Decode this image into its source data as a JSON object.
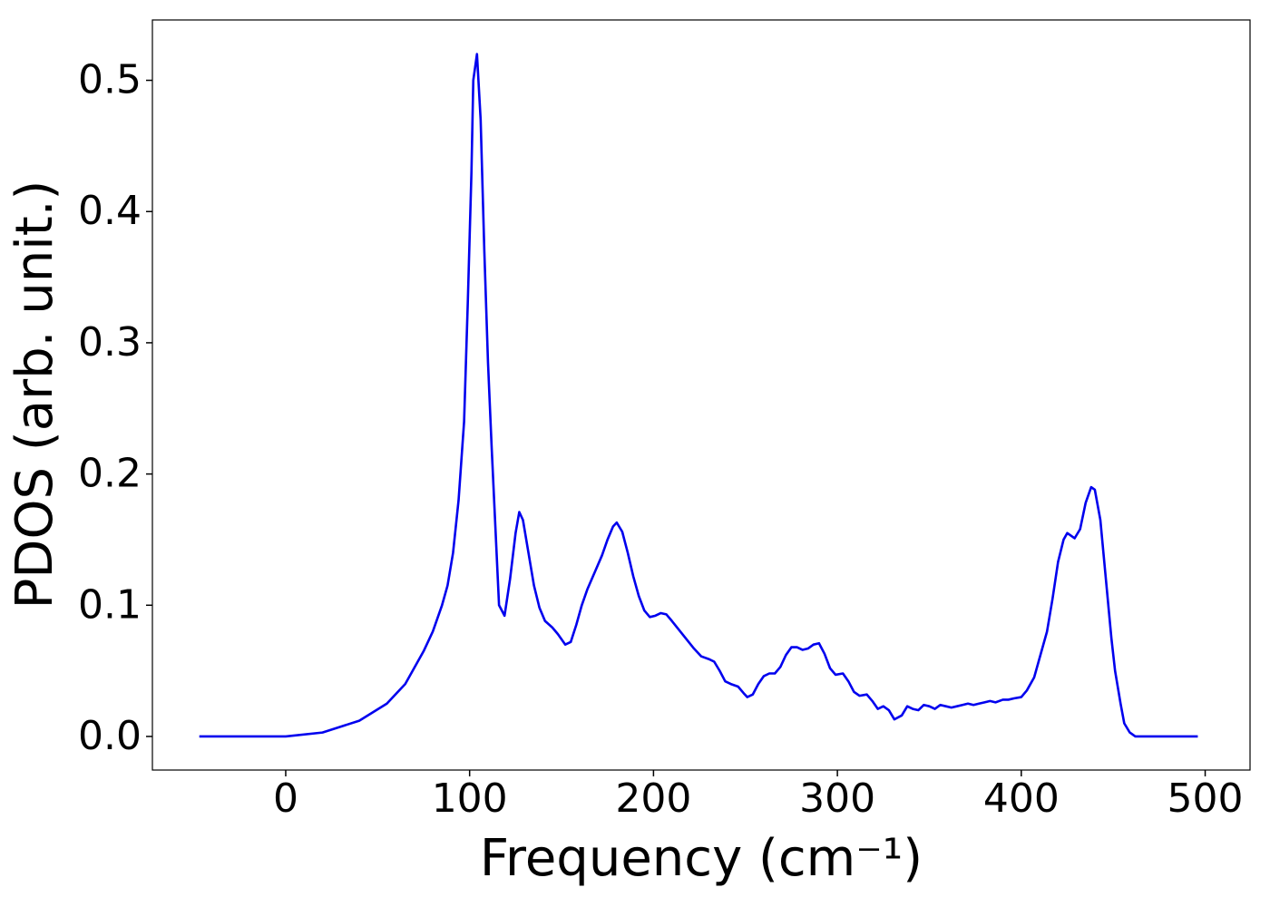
{
  "chart_data": {
    "type": "line",
    "x_label": "Frequency (cm⁻¹)",
    "y_label": "PDOS (arb. unit.)",
    "xlim": [
      -72.5,
      524.4
    ],
    "ylim": [
      -0.0256,
      0.546
    ],
    "xticks": [
      0,
      100,
      200,
      300,
      400,
      500
    ],
    "yticks": [
      {
        "value": 0,
        "label": "0.0"
      },
      0.1,
      0.2,
      0.3,
      0.4,
      0.5
    ],
    "grid": false,
    "series": [
      {
        "color": "#0000ee",
        "x": [
          -47,
          0,
          20,
          40,
          55,
          65,
          75,
          80,
          85,
          88,
          91,
          94,
          97,
          99,
          101,
          102,
          104,
          106,
          108,
          110,
          112,
          114,
          116,
          119,
          122,
          125,
          127,
          129,
          132,
          135,
          138,
          141,
          145,
          148,
          152,
          155,
          158,
          161,
          164,
          168,
          172,
          175,
          178,
          180,
          183,
          186,
          189,
          192,
          195,
          198,
          201,
          204,
          207,
          210,
          214,
          218,
          222,
          226,
          230,
          233,
          236,
          239,
          242,
          246,
          249,
          251,
          254,
          257,
          260,
          263,
          266,
          269,
          272,
          275,
          278,
          281,
          284,
          287,
          290,
          293,
          296,
          299,
          303,
          306,
          309,
          312,
          316,
          319,
          322,
          325,
          328,
          331,
          335,
          338,
          341,
          344,
          347,
          350,
          353,
          356,
          359,
          362,
          365,
          368,
          371,
          374,
          377,
          380,
          383,
          386,
          390,
          393,
          396,
          400,
          403,
          407,
          410,
          414,
          417,
          420,
          423,
          425,
          429,
          432,
          435,
          438,
          440,
          443,
          446,
          449,
          451,
          454,
          456,
          459,
          462,
          496
        ],
        "values": [
          0,
          0,
          0.003,
          0.012,
          0.025,
          0.04,
          0.065,
          0.08,
          0.1,
          0.115,
          0.14,
          0.18,
          0.24,
          0.33,
          0.43,
          0.5,
          0.52,
          0.47,
          0.37,
          0.285,
          0.22,
          0.16,
          0.1,
          0.092,
          0.12,
          0.155,
          0.171,
          0.165,
          0.14,
          0.115,
          0.098,
          0.088,
          0.083,
          0.078,
          0.07,
          0.072,
          0.085,
          0.1,
          0.112,
          0.125,
          0.138,
          0.15,
          0.16,
          0.163,
          0.156,
          0.14,
          0.122,
          0.107,
          0.096,
          0.091,
          0.092,
          0.094,
          0.093,
          0.088,
          0.081,
          0.074,
          0.067,
          0.061,
          0.059,
          0.057,
          0.05,
          0.042,
          0.04,
          0.038,
          0.033,
          0.03,
          0.032,
          0.04,
          0.046,
          0.048,
          0.048,
          0.053,
          0.062,
          0.068,
          0.068,
          0.066,
          0.067,
          0.07,
          0.071,
          0.063,
          0.052,
          0.047,
          0.048,
          0.042,
          0.034,
          0.031,
          0.032,
          0.027,
          0.021,
          0.023,
          0.02,
          0.013,
          0.016,
          0.023,
          0.021,
          0.02,
          0.024,
          0.023,
          0.021,
          0.024,
          0.023,
          0.022,
          0.023,
          0.024,
          0.025,
          0.024,
          0.025,
          0.026,
          0.027,
          0.026,
          0.028,
          0.028,
          0.029,
          0.03,
          0.035,
          0.045,
          0.06,
          0.08,
          0.105,
          0.133,
          0.15,
          0.155,
          0.151,
          0.158,
          0.178,
          0.19,
          0.188,
          0.165,
          0.12,
          0.075,
          0.05,
          0.025,
          0.01,
          0.003,
          0,
          0
        ]
      }
    ]
  }
}
